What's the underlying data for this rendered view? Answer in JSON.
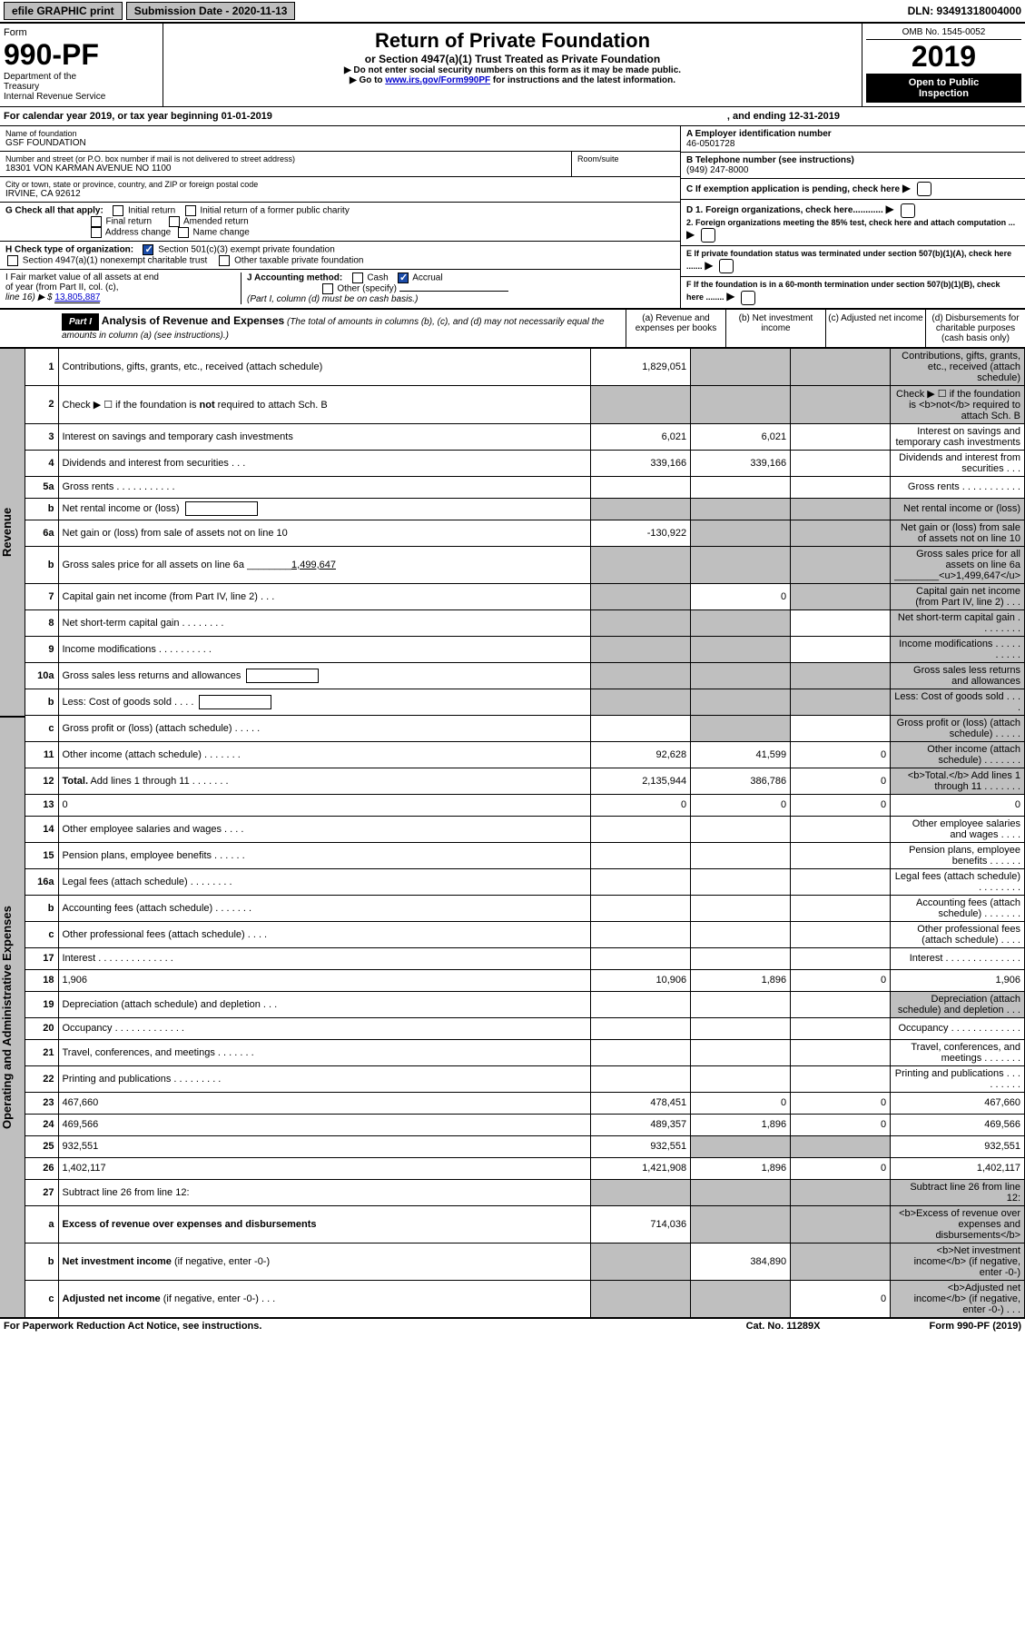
{
  "top": {
    "efile": "efile GRAPHIC print",
    "submission": "Submission Date - 2020-11-13",
    "dln": "DLN: 93491318004000"
  },
  "header": {
    "form_word": "Form",
    "form_number": "990-PF",
    "dept1": "Department of the",
    "dept2": "Treasury",
    "dept3": "Internal Revenue Service",
    "title": "Return of Private Foundation",
    "subtitle": "or Section 4947(a)(1) Trust Treated as Private Foundation",
    "note1": "▶ Do not enter social security numbers on this form as it may be made public.",
    "note2_pre": "▶ Go to ",
    "note2_link": "www.irs.gov/Form990PF",
    "note2_post": " for instructions and the latest information.",
    "omb": "OMB No. 1545-0052",
    "year": "2019",
    "open1": "Open to Public",
    "open2": "Inspection"
  },
  "cal": {
    "begin": "For calendar year 2019, or tax year beginning 01-01-2019",
    "end": ", and ending 12-31-2019"
  },
  "entity": {
    "name_label": "Name of foundation",
    "name": "GSF FOUNDATION",
    "addr_label": "Number and street (or P.O. box number if mail is not delivered to street address)",
    "addr": "18301 VON KARMAN AVENUE NO 1100",
    "room_label": "Room/suite",
    "city_label": "City or town, state or province, country, and ZIP or foreign postal code",
    "city": "IRVINE, CA  92612",
    "A_label": "A Employer identification number",
    "A_val": "46-0501728",
    "B_label": "B Telephone number (see instructions)",
    "B_val": "(949) 247-8000",
    "C_label": "C If exemption application is pending, check here",
    "D1": "D 1. Foreign organizations, check here............",
    "D2": "2. Foreign organizations meeting the 85% test, check here and attach computation ...",
    "E": "E  If private foundation status was terminated under section 507(b)(1)(A), check here .......",
    "F": "F  If the foundation is in a 60-month termination under section 507(b)(1)(B), check here ........"
  },
  "G": {
    "label": "G Check all that apply:",
    "opts": [
      "Initial return",
      "Initial return of a former public charity",
      "Final return",
      "Amended return",
      "Address change",
      "Name change"
    ]
  },
  "H": {
    "label": "H Check type of organization:",
    "opt1": "Section 501(c)(3) exempt private foundation",
    "opt2": "Section 4947(a)(1) nonexempt charitable trust",
    "opt3": "Other taxable private foundation"
  },
  "I": {
    "label1": "I Fair market value of all assets at end",
    "label2": "of year (from Part II, col. (c),",
    "label3": "line 16) ▶ $",
    "val": "13,805,887"
  },
  "J": {
    "label": "J Accounting method:",
    "cash": "Cash",
    "accrual": "Accrual",
    "other": "Other (specify)",
    "note": "(Part I, column (d) must be on cash basis.)"
  },
  "part1": {
    "label": "Part I",
    "title": "Analysis of Revenue and Expenses",
    "note": " (The total of amounts in columns (b), (c), and (d) may not necessarily equal the amounts in column (a) (see instructions).)",
    "col_a": "(a)   Revenue and expenses per books",
    "col_b": "(b)  Net investment income",
    "col_c": "(c)  Adjusted net income",
    "col_d": "(d)  Disbursements for charitable purposes (cash basis only)"
  },
  "side": {
    "rev": "Revenue",
    "exp": "Operating and Administrative Expenses"
  },
  "rows": [
    {
      "n": "1",
      "d": "Contributions, gifts, grants, etc., received (attach schedule)",
      "a": "1,829,051",
      "shade_bcd": true
    },
    {
      "n": "2",
      "d": "Check ▶ ☐ if the foundation is <b>not</b> required to attach Sch. B",
      "shade_all": true,
      "html": true
    },
    {
      "n": "3",
      "d": "Interest on savings and temporary cash investments",
      "a": "6,021",
      "b": "6,021"
    },
    {
      "n": "4",
      "d": "Dividends and interest from securities    .   .   .",
      "a": "339,166",
      "b": "339,166"
    },
    {
      "n": "5a",
      "d": "Gross rents      .    .    .    .    .    .    .    .    .    .    ."
    },
    {
      "n": "b",
      "d": "Net rental income or (loss)",
      "inline_box": true,
      "shade_all": true
    },
    {
      "n": "6a",
      "d": "Net gain or (loss) from sale of assets not on line 10",
      "a": "-130,922",
      "shade_bcd": true
    },
    {
      "n": "b",
      "d": "Gross sales price for all assets on line 6a ________<u>1,499,647</u>",
      "shade_all": true,
      "html": true
    },
    {
      "n": "7",
      "d": "Capital gain net income (from Part IV, line 2)    .   .   .",
      "b": "0",
      "shade_a": true,
      "shade_cd": true
    },
    {
      "n": "8",
      "d": "Net short-term capital gain    .    .    .    .    .    .    .    .",
      "shade_ab": true,
      "shade_d": true
    },
    {
      "n": "9",
      "d": "Income modifications   .    .    .    .    .    .    .    .    .    .",
      "shade_ab": true,
      "shade_d": true
    },
    {
      "n": "10a",
      "d": "Gross sales less returns and allowances",
      "inline_box": true,
      "shade_all": true
    },
    {
      "n": "b",
      "d": "Less: Cost of goods sold       .    .    .    .",
      "inline_box": true,
      "shade_all": true
    },
    {
      "n": "c",
      "d": "Gross profit or (loss) (attach schedule)     .    .    .    .    .",
      "shade_b": true,
      "shade_d": true
    },
    {
      "n": "11",
      "d": "Other income (attach schedule)    .    .    .    .    .    .    .",
      "a": "92,628",
      "b": "41,599",
      "c": "0",
      "shade_d": true
    },
    {
      "n": "12",
      "d": "<b>Total.</b> Add lines 1 through 11    .    .    .    .    .    .    .",
      "a": "2,135,944",
      "b": "386,786",
      "c": "0",
      "shade_d": true,
      "html": true
    },
    {
      "n": "13",
      "d": "0",
      "a": "0",
      "b": "0",
      "c": "0",
      "sect": "exp"
    },
    {
      "n": "14",
      "d": "Other employee salaries and wages     .    .    .    ."
    },
    {
      "n": "15",
      "d": "Pension plans, employee benefits    .    .    .    .    .    ."
    },
    {
      "n": "16a",
      "d": "Legal fees (attach schedule)   .    .    .    .    .    .    .    ."
    },
    {
      "n": "b",
      "d": "Accounting fees (attach schedule)   .    .    .    .    .    .    ."
    },
    {
      "n": "c",
      "d": "Other professional fees (attach schedule)      .    .    .    ."
    },
    {
      "n": "17",
      "d": "Interest    .    .    .    .    .    .    .    .    .    .    .    .    .    ."
    },
    {
      "n": "18",
      "d": "1,906",
      "a": "10,906",
      "b": "1,896",
      "c": "0"
    },
    {
      "n": "19",
      "d": "Depreciation (attach schedule) and depletion     .    .    .",
      "shade_d": true
    },
    {
      "n": "20",
      "d": "Occupancy   .    .    .    .    .    .    .    .    .    .    .    .    ."
    },
    {
      "n": "21",
      "d": "Travel, conferences, and meetings   .    .    .    .    .    .    ."
    },
    {
      "n": "22",
      "d": "Printing and publications   .    .    .    .    .    .    .    .    ."
    },
    {
      "n": "23",
      "d": "467,660",
      "a": "478,451",
      "b": "0",
      "c": "0"
    },
    {
      "n": "24",
      "d": "469,566",
      "a": "489,357",
      "b": "1,896",
      "c": "0",
      "html": true
    },
    {
      "n": "25",
      "d": "932,551",
      "a": "932,551",
      "shade_bc": true
    },
    {
      "n": "26",
      "d": "1,402,117",
      "a": "1,421,908",
      "b": "1,896",
      "c": "0",
      "html": true
    },
    {
      "n": "27",
      "d": "Subtract line 26 from line 12:",
      "shade_all": true,
      "sect": "end"
    },
    {
      "n": "a",
      "d": "<b>Excess of revenue over expenses and disbursements</b>",
      "a": "714,036",
      "shade_bcd": true,
      "html": true
    },
    {
      "n": "b",
      "d": "<b>Net investment income</b> (if negative, enter -0-)",
      "b": "384,890",
      "shade_a": true,
      "shade_cd": true,
      "html": true
    },
    {
      "n": "c",
      "d": "<b>Adjusted net income</b> (if negative, enter -0-)    .   .   .",
      "c": "0",
      "shade_ab": true,
      "shade_d": true,
      "html": true
    }
  ],
  "footer": {
    "left": "For Paperwork Reduction Act Notice, see instructions.",
    "mid": "Cat. No. 11289X",
    "right": "Form 990-PF (2019)"
  }
}
